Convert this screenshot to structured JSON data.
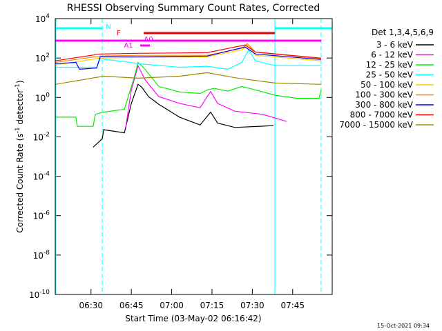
{
  "chart_data": {
    "type": "line",
    "title": "RHESSI Observing Summary Count Rates, Corrected",
    "xlabel": "Start Time (03-May-02 06:16:42)",
    "ylabel_parts": [
      {
        "text": "Corrected Count Rate (s"
      },
      {
        "sup": "-1"
      },
      {
        "text": " detector"
      },
      {
        "sup": "-1"
      },
      {
        "text": ")"
      }
    ],
    "legend_title": "Det 1,3,4,5,6,9",
    "timestamp": "15-Oct-2021 09:34",
    "log_y": true,
    "xlim": [
      376.7,
      479.7
    ],
    "xticks": [
      {
        "value": 390,
        "label": "06:30"
      },
      {
        "value": 405,
        "label": "06:45"
      },
      {
        "value": 420,
        "label": "07:00"
      },
      {
        "value": 435,
        "label": "07:15"
      },
      {
        "value": 450,
        "label": "07:30"
      },
      {
        "value": 465,
        "label": "07:45"
      }
    ],
    "ylim": [
      1e-10,
      10000
    ],
    "yticks": [
      {
        "value": 10000,
        "label": "10",
        "exp": "4"
      },
      {
        "value": 100,
        "label": "10",
        "exp": "2"
      },
      {
        "value": 1,
        "label": "10",
        "exp": "0"
      },
      {
        "value": 0.01,
        "label": "10",
        "exp": "-2"
      },
      {
        "value": 0.0001,
        "label": "10",
        "exp": "-4"
      },
      {
        "value": 1e-06,
        "label": "10",
        "exp": "-6"
      },
      {
        "value": 1e-08,
        "label": "10",
        "exp": "-8"
      },
      {
        "value": 1e-10,
        "label": "10",
        "exp": "-10"
      }
    ],
    "state_color": "#00ffff",
    "vlines": [
      {
        "x": 394.2,
        "dashed": true
      },
      {
        "x": 458.4,
        "dashed": false
      },
      {
        "x": 475.6,
        "dashed": true
      }
    ],
    "bars": [
      {
        "label": "N",
        "color": "#00ffff",
        "ranges": [
          [
            376.7,
            394.2
          ],
          [
            458.4,
            479.7
          ]
        ]
      },
      {
        "label": "F",
        "color": "#e00000",
        "ranges": [
          [
            409.6,
            458.4
          ]
        ]
      },
      {
        "label": "A0",
        "color": "#ff00ff",
        "ranges": [
          [
            376.7,
            475.6
          ]
        ]
      },
      {
        "label": "A1",
        "color": "#ff00ff",
        "ranges": [
          [
            408.3,
            411.9
          ]
        ]
      }
    ],
    "series": [
      {
        "name": "3 - 6 keV",
        "color": "#000000",
        "x": [
          390.8,
          394.2,
          394.7,
          402.4,
          405.0,
          407.5,
          408.8,
          411.4,
          415.2,
          422.9,
          430.6,
          433.2,
          434.5,
          437.1,
          443.5,
          457.9
        ],
        "values": [
          0.003,
          0.008,
          0.023,
          0.016,
          0.5,
          4.6,
          3.4,
          1.1,
          0.45,
          0.1,
          0.04,
          0.11,
          0.18,
          0.05,
          0.03,
          0.037
        ]
      },
      {
        "name": "6 - 12 keV",
        "color": "#ff00ff",
        "x": [
          402.9,
          405.0,
          407.5,
          410.1,
          415.2,
          422.9,
          430.6,
          433.2,
          434.5,
          437.1,
          443.5,
          453.8,
          462.8
        ],
        "values": [
          0.03,
          2.4,
          40,
          8,
          1.1,
          0.5,
          0.3,
          1.1,
          2,
          0.5,
          0.2,
          0.14,
          0.06
        ]
      },
      {
        "name": "12 - 25 keV",
        "color": "#00ee00",
        "x": [
          376.7,
          384.4,
          384.9,
          390.8,
          391.6,
          394.7,
          402.4,
          406.2,
          407.5,
          410.1,
          415.2,
          422.9,
          430.6,
          433.2,
          435.8,
          440.9,
          446.1,
          451.2,
          458.4,
          466.6,
          474.8,
          475.6
        ],
        "values": [
          0.1,
          0.1,
          0.034,
          0.034,
          0.14,
          0.18,
          0.25,
          12,
          60,
          27,
          3.6,
          1.9,
          1.6,
          2.4,
          2.9,
          2.1,
          3.6,
          2.4,
          1.3,
          0.9,
          0.9,
          2.4
        ]
      },
      {
        "name": "25 - 50 keV",
        "color": "#00ffff",
        "x": [
          376.7,
          392.1,
          393.4,
          402.4,
          407.5,
          422.9,
          433.2,
          440.9,
          446.1,
          448.6,
          451.2,
          458.4,
          475.6
        ],
        "values": [
          34,
          34,
          91,
          66,
          52,
          34,
          38,
          27,
          60,
          260,
          72,
          41,
          41
        ]
      },
      {
        "name": "50 - 100 keV",
        "color": "#ffcc00",
        "x": [
          376.7,
          393.4,
          407.5,
          433.2,
          446.1,
          448.6,
          451.2,
          475.6
        ],
        "values": [
          44,
          99,
          107,
          116,
          260,
          460,
          137,
          72
        ]
      },
      {
        "name": "100 - 300 keV",
        "color": "#ff8800",
        "x": [
          376.7,
          393.4,
          407.5,
          433.2,
          446.1,
          448.1,
          451.2,
          475.6
        ],
        "values": [
          60,
          126,
          137,
          137,
          310,
          540,
          200,
          91
        ]
      },
      {
        "name": "300 - 800 keV",
        "color": "#0000ff",
        "x": [
          376.7,
          384.4,
          385.7,
          392.1,
          393.4,
          407.5,
          433.2,
          447.3,
          451.2,
          475.6
        ],
        "values": [
          52,
          60,
          27,
          31,
          116,
          116,
          126,
          360,
          160,
          84
        ]
      },
      {
        "name": "800 - 7000 keV",
        "color": "#ff0000",
        "x": [
          376.7,
          393.4,
          407.5,
          433.2,
          447.3,
          451.2,
          475.6
        ],
        "values": [
          72,
          160,
          173,
          187,
          460,
          200,
          99
        ]
      },
      {
        "name": "7000 - 15000 keV",
        "color": "#9b8b00",
        "x": [
          376.7,
          394.7,
          407.5,
          422.9,
          433.2,
          443.5,
          458.4,
          475.6
        ],
        "values": [
          4.6,
          12,
          9.5,
          12,
          18,
          10,
          5.4,
          4.6
        ]
      }
    ]
  }
}
